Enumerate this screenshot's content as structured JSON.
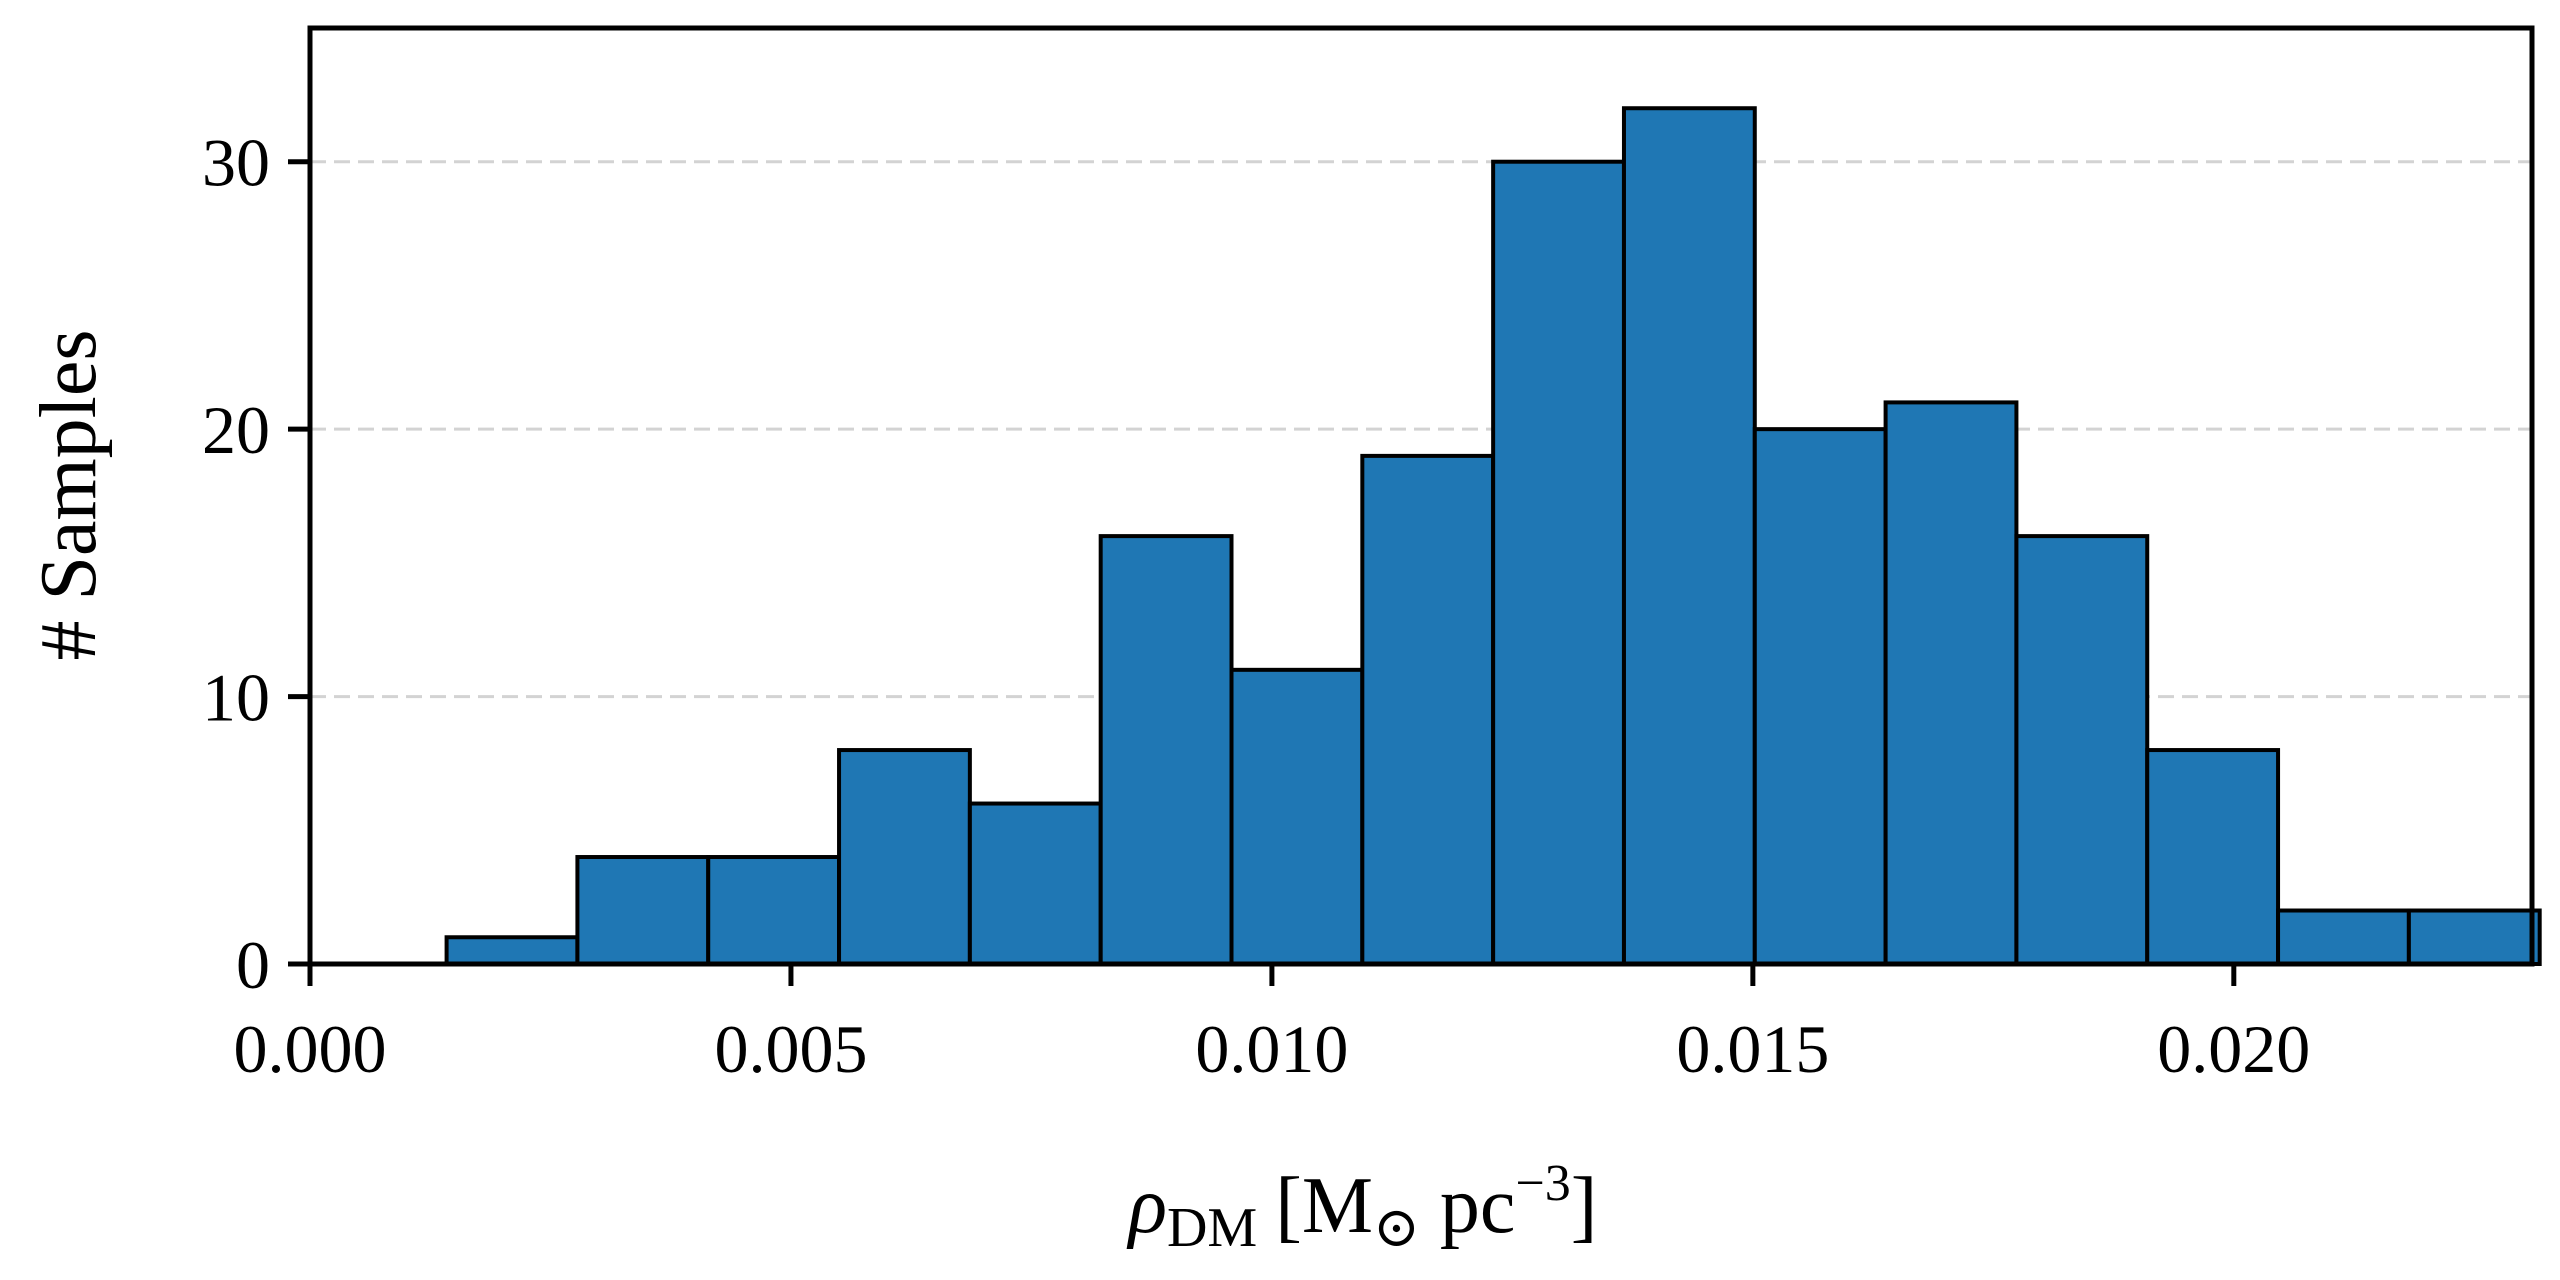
{
  "chart_data": {
    "type": "bar",
    "subtype": "histogram",
    "bin_edges": [
      0.00142,
      0.00278,
      0.00414,
      0.0055,
      0.00686,
      0.00822,
      0.00958,
      0.01094,
      0.0123,
      0.01366,
      0.01502,
      0.01638,
      0.01774,
      0.0191,
      0.02046,
      0.02182,
      0.02318
    ],
    "values": [
      1,
      4,
      4,
      8,
      6,
      16,
      11,
      19,
      30,
      32,
      20,
      21,
      16,
      8,
      2,
      2
    ],
    "bar_color": "#1f77b4",
    "edge_color": "#000000",
    "xlim": [
      0.0,
      0.0231
    ],
    "ylim": [
      0,
      35
    ],
    "xticks": [
      0.0,
      0.005,
      0.01,
      0.015,
      0.02
    ],
    "xtick_labels": [
      "0.000",
      "0.005",
      "0.010",
      "0.015",
      "0.020"
    ],
    "yticks": [
      0,
      10,
      20,
      30
    ],
    "ytick_labels": [
      "0",
      "10",
      "20",
      "30"
    ],
    "xlabel": {
      "symbol": "ρ",
      "subscript": "DM",
      "unit_open": "[M",
      "unit_sun": "⊙",
      "unit_pc": " pc",
      "unit_exp": "−3",
      "unit_close": "]"
    },
    "ylabel": "# Samples",
    "grid": {
      "axis": "y",
      "style": "dashed",
      "color": "#d3d3d3"
    },
    "legend": "none"
  }
}
